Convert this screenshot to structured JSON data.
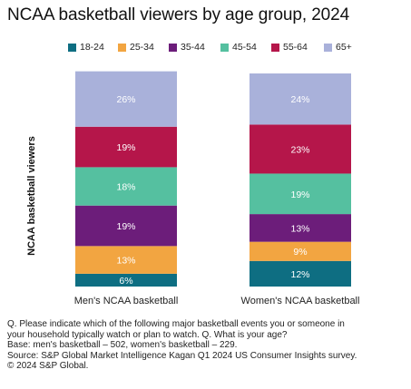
{
  "chart_data": {
    "type": "bar",
    "stacked": true,
    "title": "NCAA basketball viewers by age group, 2024",
    "ylabel": "NCAA basketball viewers",
    "xlabel": "",
    "ylim": [
      0,
      100
    ],
    "grid": false,
    "legend_position": "top",
    "categories": [
      "Men's NCAA basketball",
      "Women's NCAA basketball"
    ],
    "series": [
      {
        "name": "18-24",
        "color": "#0e6e82",
        "text_color": "#ffffff",
        "values": [
          6,
          12
        ],
        "labels": [
          "6%",
          "12%"
        ]
      },
      {
        "name": "25-34",
        "color": "#f2a541",
        "text_color": "#ffffff",
        "values": [
          13,
          9
        ],
        "labels": [
          "13%",
          "9%"
        ]
      },
      {
        "name": "35-44",
        "color": "#6c1d7a",
        "text_color": "#ffffff",
        "values": [
          19,
          13
        ],
        "labels": [
          "19%",
          "13%"
        ]
      },
      {
        "name": "45-54",
        "color": "#55c0a0",
        "text_color": "#ffffff",
        "values": [
          18,
          19
        ],
        "labels": [
          "18%",
          "19%"
        ]
      },
      {
        "name": "55-64",
        "color": "#b5164a",
        "text_color": "#ffffff",
        "values": [
          19,
          23
        ],
        "labels": [
          "19%",
          "23%"
        ]
      },
      {
        "name": "65+",
        "color": "#a9b1da",
        "text_color": "#ffffff",
        "values": [
          26,
          24
        ],
        "labels": [
          "26%",
          "24%"
        ]
      }
    ]
  },
  "notes": [
    "Q. Please indicate which of the following major basketball events you or someone in",
    "your household typically watch or plan to watch. Q. What is your age?",
    "Base: men's basketball – 502, women's basketball – 229.",
    "Source: S&P Global Market Intelligence Kagan Q1 2024 US Consumer Insights survey.",
    "© 2024 S&P Global."
  ]
}
